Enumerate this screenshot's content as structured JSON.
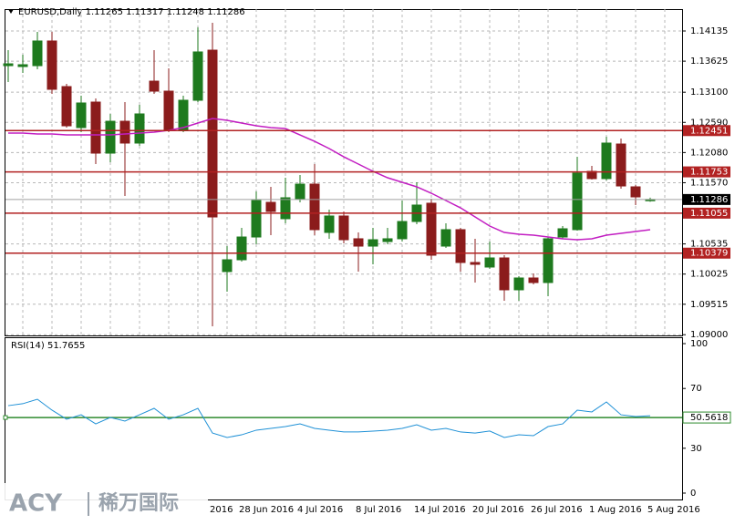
{
  "chart_data": [
    {
      "type": "candlestick",
      "title": "EURUSD,Daily  1.11265 1.11317 1.11248 1.11286",
      "categories": [
        null,
        null,
        null,
        null,
        null,
        null,
        null,
        null,
        null,
        null,
        null,
        null,
        null,
        null,
        "2016",
        null,
        "28 Jun 2016",
        null,
        null,
        null,
        "4 Jul 2016",
        null,
        null,
        null,
        "8 Jul 2016",
        null,
        null,
        null,
        "14 Jul 2016",
        null,
        null,
        null,
        "20 Jul 2016",
        null,
        null,
        null,
        "26 Jul 2016",
        null,
        null,
        null,
        "1 Aug 2016",
        null,
        null,
        null,
        "5 Aug 2016"
      ],
      "open": [
        1.13549,
        1.13534,
        1.13549,
        1.13966,
        1.13195,
        1.12502,
        1.12933,
        1.1207,
        1.12609,
        1.1224,
        1.13287,
        1.13118,
        1.12455,
        1.12964,
        1.13811,
        1.10067,
        1.10267,
        1.10652,
        1.11238,
        1.10961,
        1.113,
        1.11546,
        1.10729,
        1.11007,
        1.10622,
        1.10498,
        1.10575,
        1.10622,
        1.10914,
        1.11223,
        1.10498,
        1.10776,
        1.10221,
        1.10144,
        1.10298,
        1.09759,
        1.09959,
        1.09882,
        1.10652,
        1.10776,
        1.11762,
        1.11639,
        1.12224,
        1.115,
        1.11265
      ],
      "high": [
        1.13811,
        1.13734,
        1.1412,
        1.1412,
        1.13241,
        1.13041,
        1.12995,
        1.12733,
        1.12933,
        1.12887,
        1.13811,
        1.13503,
        1.13041,
        1.14197,
        1.14274,
        1.10498,
        1.10806,
        1.11423,
        1.115,
        1.11654,
        1.117,
        1.11885,
        1.11115,
        1.11084,
        1.10729,
        1.10806,
        1.10806,
        1.11269,
        1.11577,
        1.113,
        1.10884,
        1.10806,
        1.10622,
        1.10575,
        1.10344,
        1.0999,
        1.10036,
        1.10652,
        1.10837,
        1.12008,
        1.11854,
        1.12347,
        1.12317,
        1.11531,
        1.11317
      ],
      "low": [
        1.13272,
        1.13426,
        1.13488,
        1.13072,
        1.12502,
        1.12425,
        1.11885,
        1.11916,
        1.11346,
        1.12193,
        1.13072,
        1.12425,
        1.12425,
        1.12933,
        1.09142,
        1.09728,
        1.10236,
        1.10529,
        1.10683,
        1.10884,
        1.11238,
        1.10683,
        1.10622,
        1.10545,
        1.10067,
        1.1019,
        1.10529,
        1.10575,
        1.10868,
        1.10267,
        1.10467,
        1.10067,
        1.09882,
        1.10113,
        1.09574,
        1.09574,
        1.09851,
        1.09651,
        1.10622,
        1.1076,
        1.11623,
        1.11608,
        1.11469,
        1.11192,
        1.11248
      ],
      "close": [
        1.1358,
        1.13565,
        1.13966,
        1.13149,
        1.12532,
        1.12918,
        1.1207,
        1.12609,
        1.1224,
        1.12733,
        1.13118,
        1.12455,
        1.12964,
        1.13781,
        1.10991,
        1.10267,
        1.10652,
        1.11269,
        1.11084,
        1.11315,
        1.11546,
        1.10776,
        1.11007,
        1.10606,
        1.10498,
        1.10606,
        1.10622,
        1.10914,
        1.11192,
        1.10344,
        1.10776,
        1.10221,
        1.1019,
        1.10298,
        1.09759,
        1.09959,
        1.09882,
        1.10622,
        1.10791,
        1.11731,
        1.11639,
        1.1224,
        1.11515,
        1.1133,
        1.11286
      ],
      "up_color": "#1e7a1e",
      "down_color": "#8b1c1c",
      "ma": {
        "color": "#c21ec2",
        "values": [
          1.12409,
          1.12409,
          1.12394,
          1.12394,
          1.12378,
          1.12378,
          1.12378,
          1.12378,
          1.12394,
          1.12409,
          1.12425,
          1.12455,
          1.12502,
          1.12579,
          1.12656,
          1.12625,
          1.12579,
          1.12532,
          1.12502,
          1.12486,
          1.12378,
          1.1227,
          1.12147,
          1.12008,
          1.11885,
          1.11762,
          1.11654,
          1.11577,
          1.115,
          1.11392,
          1.11269,
          1.11145,
          1.10991,
          1.10837,
          1.10729,
          1.10699,
          1.10683,
          1.10652,
          1.10622,
          1.10606,
          1.10622,
          1.10683,
          1.10714,
          1.10745,
          1.10776
        ]
      },
      "levels": [
        {
          "value": 1.12451,
          "color": "#b22222"
        },
        {
          "value": 1.11753,
          "color": "#b22222"
        },
        {
          "value": 1.11055,
          "color": "#b22222"
        },
        {
          "value": 1.10379,
          "color": "#b22222"
        }
      ],
      "current": 1.11286,
      "ylim": [
        1.08988,
        1.14505
      ],
      "yticks": [
        1.14135,
        1.13625,
        {
          "value": 1.131,
          "label": "1.13100"
        },
        {
          "value": 1.1259,
          "label": "1.12590"
        },
        {
          "value": 1.1208,
          "label": "1.12080"
        },
        {
          "value": 1.1157,
          "label": "1.11570"
        },
        1.10535,
        1.10025,
        1.09515,
        {
          "value": 1.09,
          "label": "1.09000"
        }
      ],
      "grid": true
    },
    {
      "type": "line",
      "title": "RSI(14) 51.7655",
      "values": [
        58.5,
        59.8,
        62.8,
        55.5,
        49.4,
        52.4,
        46.3,
        50.6,
        48.2,
        52.4,
        56.7,
        49.4,
        52.4,
        56.7,
        40.2,
        37.2,
        39.0,
        42.1,
        43.3,
        44.5,
        46.3,
        43.3,
        42.1,
        40.9,
        40.9,
        41.5,
        42.1,
        43.3,
        45.7,
        42.1,
        43.3,
        40.9,
        40.2,
        41.5,
        37.2,
        39.0,
        38.4,
        44.5,
        46.3,
        55.5,
        54.3,
        61.0,
        52.4,
        51.2,
        51.7655
      ],
      "color": "#1e90d6",
      "level": 50.5618,
      "level_color": "#2e8b2e",
      "ylim": [
        -4.27,
        104.27
      ],
      "yticks": [
        100,
        70,
        30,
        0
      ]
    }
  ],
  "logo": {
    "text": "ACY",
    "subtext": "稀万国际"
  }
}
